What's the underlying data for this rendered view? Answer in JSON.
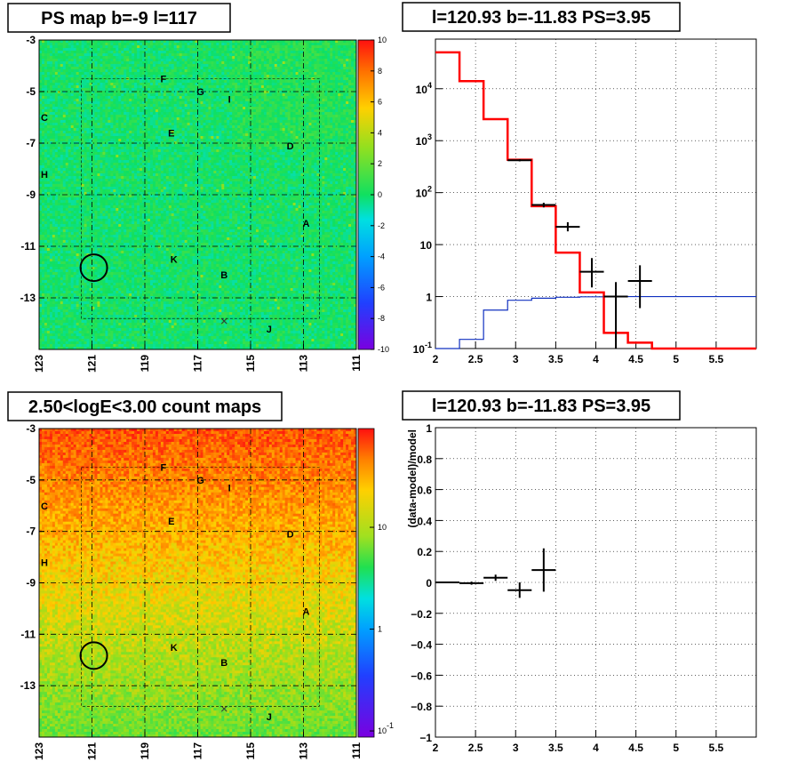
{
  "chart_data": [
    {
      "type": "heatmap",
      "title": "PS map b=-9 l=117",
      "x_ticks": [
        "123",
        "121",
        "119",
        "117",
        "115",
        "113",
        "111"
      ],
      "y_ticks": [
        "-3",
        "-5",
        "-7",
        "-9",
        "-11",
        "-13"
      ],
      "xlim": [
        123,
        111
      ],
      "ylim": [
        -15,
        -3
      ],
      "colorbar_ticks": [
        "10",
        "8",
        "6",
        "4",
        "2",
        "0",
        "-2",
        "-4",
        "-6",
        "-8",
        "-10"
      ],
      "colorbar_range": [
        -10,
        10
      ],
      "background_level": 0.4,
      "sources": [
        {
          "label": "F",
          "l": 118.3,
          "b": -4.5
        },
        {
          "label": "G",
          "l": 116.9,
          "b": -5.0
        },
        {
          "label": "I",
          "l": 115.8,
          "b": -5.3
        },
        {
          "label": "C",
          "l": 122.8,
          "b": -6.0
        },
        {
          "label": "E",
          "l": 118.0,
          "b": -6.6
        },
        {
          "label": "D",
          "l": 113.5,
          "b": -7.1
        },
        {
          "label": "H",
          "l": 122.8,
          "b": -8.2
        },
        {
          "label": "A",
          "l": 112.9,
          "b": -10.1
        },
        {
          "label": "K",
          "l": 117.9,
          "b": -11.5
        },
        {
          "label": "B",
          "l": 116.0,
          "b": -12.1
        },
        {
          "label": "J",
          "l": 114.3,
          "b": -14.2
        }
      ],
      "circle": {
        "l": 120.93,
        "b": -11.83
      },
      "cross": {
        "l": 116.0,
        "b": -13.9
      }
    },
    {
      "type": "line",
      "title": "l=120.93 b=-11.83 PS=3.95",
      "x_ticks": [
        "2",
        "2.5",
        "3",
        "3.5",
        "4",
        "4.5",
        "5",
        "5.5"
      ],
      "y_ticks": [
        "10^-1",
        "1",
        "10",
        "10^2",
        "10^3",
        "10^4"
      ],
      "xlim": [
        2,
        6
      ],
      "ylim": [
        0.1,
        90000
      ],
      "y_scale": "log",
      "model_total": {
        "edges": [
          2,
          2.3,
          2.6,
          2.9,
          3.2,
          3.5,
          3.8,
          4.1,
          4.4,
          4.7,
          6.0
        ],
        "values": [
          50000,
          14000,
          2600,
          430,
          55,
          7,
          1.2,
          0.2,
          0.13,
          0.1
        ]
      },
      "point_source": {
        "edges": [
          2,
          2.3,
          2.6,
          2.9,
          3.2,
          3.5,
          3.8,
          4.1,
          4.4,
          4.7,
          6.0
        ],
        "values": [
          0.1,
          0.15,
          0.55,
          0.85,
          0.93,
          0.97,
          0.99,
          1.0,
          1.0,
          1.0
        ]
      },
      "data_points": [
        {
          "x": 3.05,
          "y": 420,
          "xerr": 0.15,
          "ylo": 400,
          "yhi": 440
        },
        {
          "x": 3.35,
          "y": 58,
          "xerr": 0.15,
          "ylo": 52,
          "yhi": 64
        },
        {
          "x": 3.65,
          "y": 22,
          "xerr": 0.15,
          "ylo": 18,
          "yhi": 27
        },
        {
          "x": 3.95,
          "y": 3,
          "xerr": 0.15,
          "ylo": 1.5,
          "yhi": 5.5
        },
        {
          "x": 4.25,
          "y": 1,
          "xerr": 0.15,
          "ylo": 0.1,
          "yhi": 1.9
        },
        {
          "x": 4.55,
          "y": 2,
          "xerr": 0.15,
          "ylo": 0.6,
          "yhi": 4
        }
      ]
    },
    {
      "type": "heatmap",
      "title": "2.50<logE<3.00 count maps",
      "x_ticks": [
        "123",
        "121",
        "119",
        "117",
        "115",
        "113",
        "111"
      ],
      "y_ticks": [
        "-3",
        "-5",
        "-7",
        "-9",
        "-11",
        "-13"
      ],
      "xlim": [
        123,
        111
      ],
      "ylim": [
        -15,
        -3
      ],
      "colorbar_ticks": [
        "10",
        "1",
        "10^-1"
      ],
      "colorbar_scale": "log",
      "sources": [
        {
          "label": "F",
          "l": 118.3,
          "b": -4.5
        },
        {
          "label": "G",
          "l": 116.9,
          "b": -5.0
        },
        {
          "label": "I",
          "l": 115.8,
          "b": -5.3
        },
        {
          "label": "C",
          "l": 122.8,
          "b": -6.0
        },
        {
          "label": "E",
          "l": 118.0,
          "b": -6.6
        },
        {
          "label": "D",
          "l": 113.5,
          "b": -7.1
        },
        {
          "label": "H",
          "l": 122.8,
          "b": -8.2
        },
        {
          "label": "A",
          "l": 112.9,
          "b": -10.1
        },
        {
          "label": "K",
          "l": 117.9,
          "b": -11.5
        },
        {
          "label": "B",
          "l": 116.0,
          "b": -12.1
        },
        {
          "label": "J",
          "l": 114.3,
          "b": -14.2
        }
      ],
      "circle": {
        "l": 120.93,
        "b": -11.83
      },
      "cross": {
        "l": 116.0,
        "b": -13.9
      }
    },
    {
      "type": "scatter",
      "title": "l=120.93 b=-11.83 PS=3.95",
      "ylabel": "(data-model)/model",
      "x_ticks": [
        "2",
        "2.5",
        "3",
        "3.5",
        "4",
        "4.5",
        "5",
        "5.5"
      ],
      "y_ticks": [
        "1",
        "0.8",
        "0.6",
        "0.4",
        "0.2",
        "0",
        "-0.2",
        "-0.4",
        "-0.6",
        "-0.8",
        "-1"
      ],
      "xlim": [
        2,
        6
      ],
      "ylim": [
        -1,
        1
      ],
      "data_points": [
        {
          "x": 2.15,
          "y": 0,
          "xerr": 0.15,
          "yerr": 0.005
        },
        {
          "x": 2.45,
          "y": -0.005,
          "xerr": 0.15,
          "yerr": 0.01
        },
        {
          "x": 2.75,
          "y": 0.03,
          "xerr": 0.15,
          "yerr": 0.02
        },
        {
          "x": 3.05,
          "y": -0.05,
          "xerr": 0.15,
          "yerr": 0.05
        },
        {
          "x": 3.35,
          "y": 0.08,
          "xerr": 0.15,
          "yerr": 0.14
        }
      ]
    }
  ]
}
